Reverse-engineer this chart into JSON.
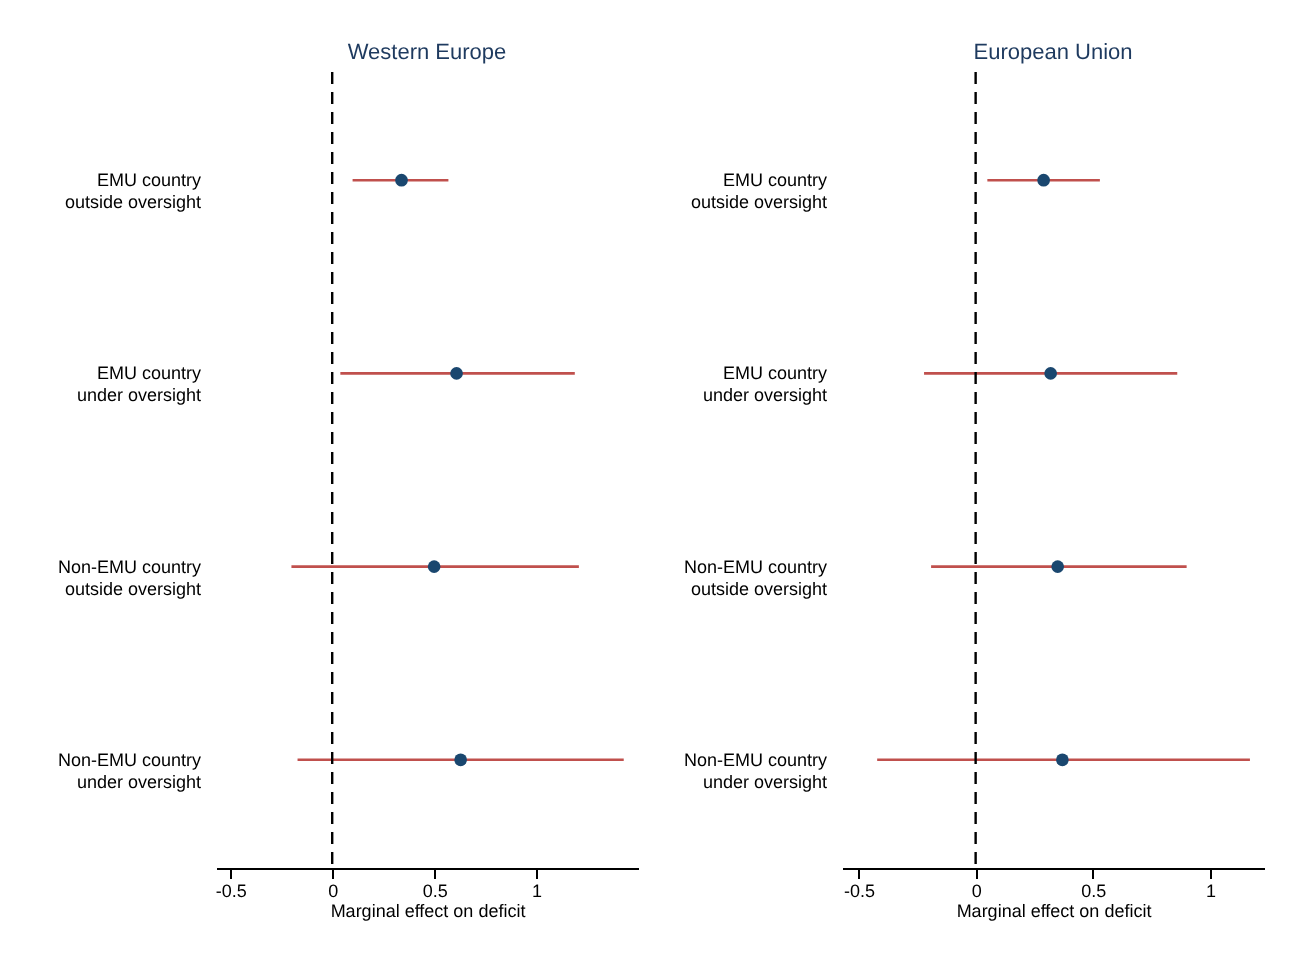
{
  "chart_data": [
    {
      "type": "scatter",
      "orientation": "horizontal",
      "title": "Western Europe",
      "xlabel": "Marginal effect on deficit",
      "marker": "circle",
      "categories": [
        "EMU country\noutside oversight",
        "EMU country\nunder oversight",
        "Non-EMU country\noutside oversight",
        "Non-EMU country\nunder oversight"
      ],
      "series": [
        {
          "color": "#1a476f",
          "values": [
            0.34,
            0.61,
            0.5,
            0.63
          ],
          "errors": [
            [
              0.1,
              0.57
            ],
            [
              0.04,
              1.19
            ],
            [
              -0.2,
              1.21
            ],
            [
              -0.17,
              1.43
            ]
          ]
        }
      ],
      "xlim": [
        -0.57,
        1.5
      ],
      "xticks": [
        -0.5,
        0,
        0.5,
        1
      ],
      "ref_lines": [
        {
          "axis": "x",
          "value": 0,
          "line_style": "dashed",
          "color": "#000000"
        }
      ]
    },
    {
      "type": "scatter",
      "orientation": "horizontal",
      "title": "European Union",
      "xlabel": "Marginal effect on deficit",
      "marker": "circle",
      "categories": [
        "EMU country\noutside oversight",
        "EMU country\nunder oversight",
        "Non-EMU country\noutside oversight",
        "Non-EMU country\nunder oversight"
      ],
      "series": [
        {
          "color": "#1a476f",
          "values": [
            0.29,
            0.32,
            0.35,
            0.37
          ],
          "errors": [
            [
              0.05,
              0.53
            ],
            [
              -0.22,
              0.86
            ],
            [
              -0.19,
              0.9
            ],
            [
              -0.42,
              1.17
            ]
          ]
        }
      ],
      "xlim": [
        -0.57,
        1.23
      ],
      "xticks": [
        -0.5,
        0,
        0.5,
        1
      ],
      "ref_lines": [
        {
          "axis": "x",
          "value": 0,
          "line_style": "dashed",
          "color": "#000000"
        }
      ]
    }
  ]
}
